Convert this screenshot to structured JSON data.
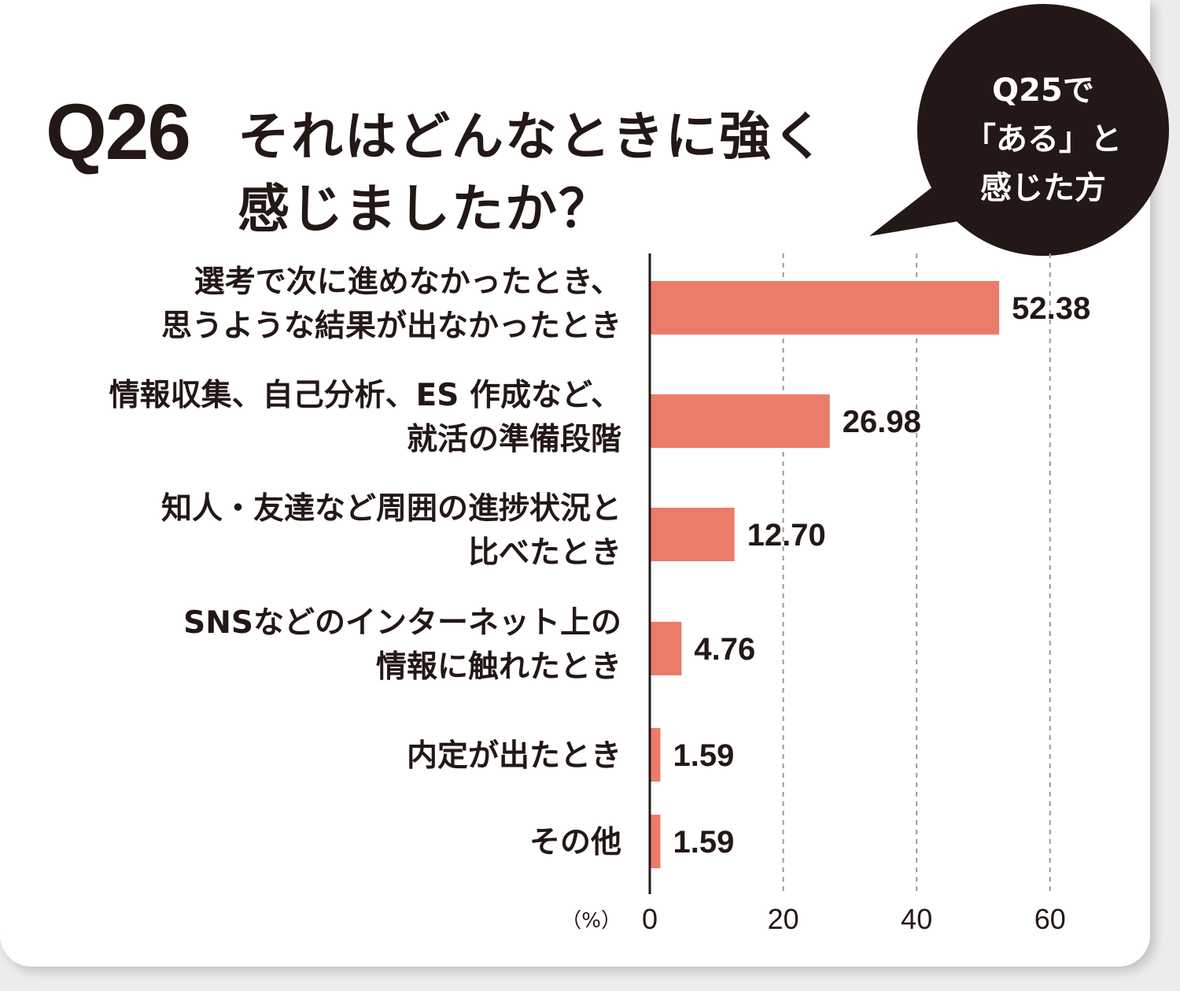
{
  "header": {
    "question_number": "Q26",
    "question_line1": "それはどんなときに強く",
    "question_line2": "感じましたか？"
  },
  "bubble": {
    "line1": "Q25で",
    "line2": "「ある」と",
    "line3": "感じた方"
  },
  "colors": {
    "bar": "#ec7b6c",
    "text": "#231815",
    "bubble": "#231815"
  },
  "chart_data": {
    "type": "bar",
    "orientation": "horizontal",
    "title": "Q26 それはどんなときに強く感じましたか？",
    "unit": "（%）",
    "xlim": [
      0,
      60
    ],
    "ticks": [
      0,
      20,
      40,
      60
    ],
    "grid": true,
    "categories": [
      [
        "選考で次に進めなかったとき、",
        "思うような結果が出なかったとき"
      ],
      [
        "情報収集、自己分析、ES 作成など、",
        "就活の準備段階"
      ],
      [
        "知人・友達など周囲の進捗状況と",
        "比べたとき"
      ],
      [
        "SNSなどのインターネット上の",
        "情報に触れたとき"
      ],
      [
        "内定が出たとき"
      ],
      [
        "その他"
      ]
    ],
    "values": [
      52.38,
      26.98,
      12.7,
      4.76,
      1.59,
      1.59
    ],
    "value_labels": [
      "52.38",
      "26.98",
      "12.70",
      "4.76",
      "1.59",
      "1.59"
    ]
  }
}
